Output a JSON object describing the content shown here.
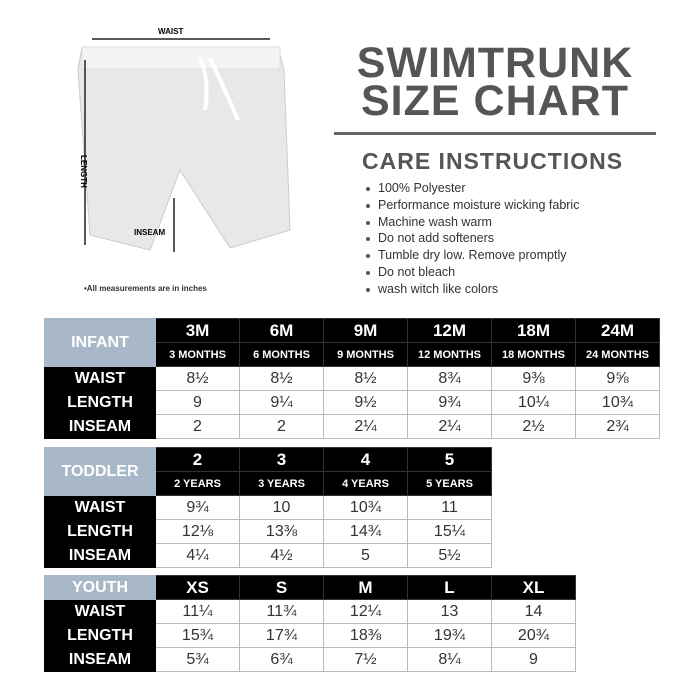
{
  "shorts": {
    "waist_label": "WAIST",
    "length_label": "LENGTH",
    "inseam_label": "INSEAM",
    "note": "•All measurements are in inches"
  },
  "title": {
    "line1": "SWIMTRUNK",
    "line2": "SIZE CHART"
  },
  "care": {
    "heading": "CARE INSTRUCTIONS",
    "items": [
      "100% Polyester",
      "Performance moisture wicking fabric",
      "Machine wash warm",
      "Do not add softeners",
      "Tumble dry low. Remove promptly",
      "Do not bleach",
      "wash witch like colors"
    ]
  },
  "colors": {
    "category": "#a8b8c8",
    "header": "#000000"
  },
  "tables": [
    {
      "category": "INFANT",
      "sizes": [
        "3M",
        "6M",
        "9M",
        "12M",
        "18M",
        "24M"
      ],
      "subs": [
        "3 MONTHS",
        "6 MONTHS",
        "9 MONTHS",
        "12 MONTHS",
        "18 MONTHS",
        "24 MONTHS"
      ],
      "rows": [
        {
          "label": "WAIST",
          "values": [
            "8½",
            "8½",
            "8½",
            "8¾",
            "9⅜",
            "9⅝"
          ]
        },
        {
          "label": "LENGTH",
          "values": [
            "9",
            "9¼",
            "9½",
            "9¾",
            "10¼",
            "10¾"
          ]
        },
        {
          "label": "INSEAM",
          "values": [
            "2",
            "2",
            "2¼",
            "2¼",
            "2½",
            "2¾"
          ]
        }
      ]
    },
    {
      "category": "TODDLER",
      "sizes": [
        "2",
        "3",
        "4",
        "5"
      ],
      "subs": [
        "2 YEARS",
        "3 YEARS",
        "4 YEARS",
        "5 YEARS"
      ],
      "rows": [
        {
          "label": "WAIST",
          "values": [
            "9¾",
            "10",
            "10¾",
            "11"
          ]
        },
        {
          "label": "LENGTH",
          "values": [
            "12⅛",
            "13⅜",
            "14¾",
            "15¼"
          ]
        },
        {
          "label": "INSEAM",
          "values": [
            "4¼",
            "4½",
            "5",
            "5½"
          ]
        }
      ]
    },
    {
      "category": "YOUTH",
      "sizes": [
        "XS",
        "S",
        "M",
        "L",
        "XL"
      ],
      "rows": [
        {
          "label": "WAIST",
          "values": [
            "11¼",
            "11¾",
            "12¼",
            "13",
            "14"
          ]
        },
        {
          "label": "LENGTH",
          "values": [
            "15¾",
            "17¾",
            "18⅜",
            "19¾",
            "20¾"
          ]
        },
        {
          "label": "INSEAM",
          "values": [
            "5¾",
            "6¾",
            "7½",
            "8¼",
            "9"
          ]
        }
      ]
    }
  ]
}
